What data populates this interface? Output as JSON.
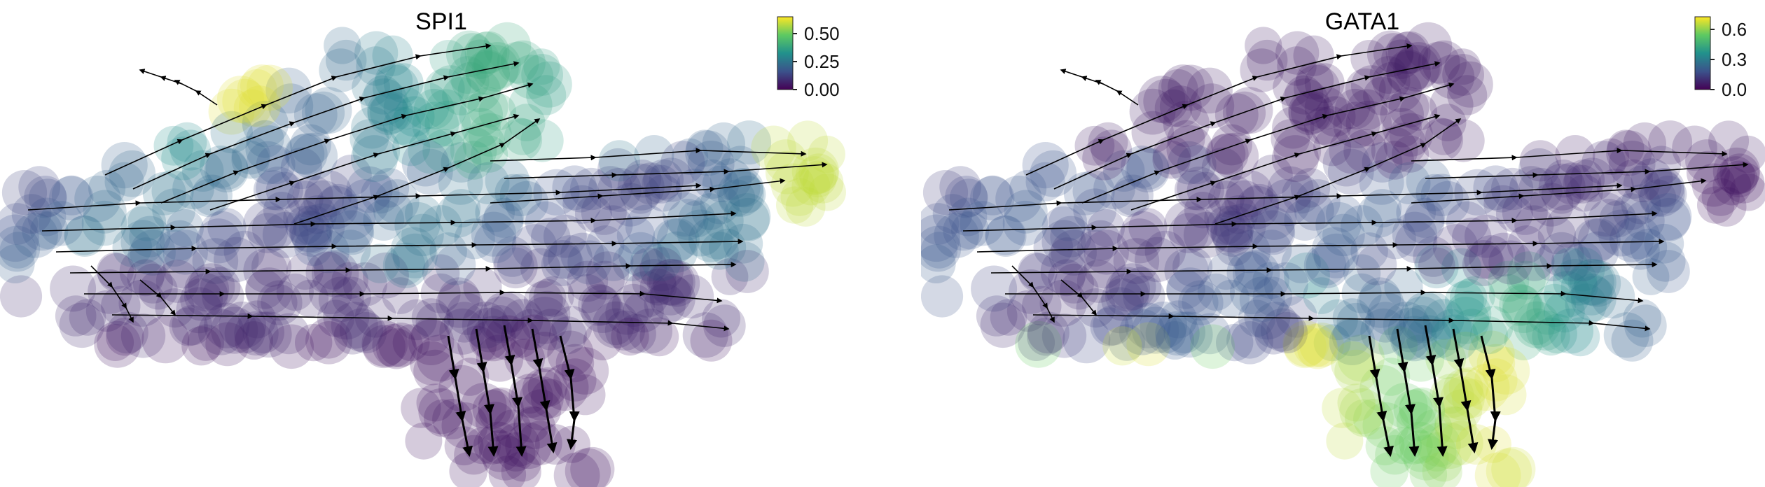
{
  "figure": {
    "panels": [
      {
        "title": "SPI1",
        "colorbar": {
          "ticks": [
            "0.00",
            "0.25",
            "0.50"
          ],
          "vmin": 0.0,
          "vmax": 0.65
        }
      },
      {
        "title": "GATA1",
        "colorbar": {
          "ticks": [
            "0.0",
            "0.3",
            "0.6"
          ],
          "vmin": 0.0,
          "vmax": 0.72
        }
      }
    ]
  },
  "chart_data": [
    {
      "type": "scatter",
      "subtype": "embedding-streamplot",
      "title": "SPI1",
      "xlabel": "",
      "ylabel": "",
      "colormap": "viridis",
      "colorbar_range": [
        0.0,
        0.65
      ],
      "colorbar_ticks": [
        0.0,
        0.25,
        0.5
      ],
      "grid": false,
      "axes_visible": false,
      "regions": [
        {
          "region": "top-left branch tip",
          "value": 0.62
        },
        {
          "region": "upper lobe",
          "value": 0.35
        },
        {
          "region": "right tip",
          "value": 0.6
        },
        {
          "region": "center band",
          "value": 0.15
        },
        {
          "region": "lower stem",
          "value": 0.03
        }
      ]
    },
    {
      "type": "scatter",
      "subtype": "embedding-streamplot",
      "title": "GATA1",
      "xlabel": "",
      "ylabel": "",
      "colormap": "viridis",
      "colorbar_range": [
        0.0,
        0.72
      ],
      "colorbar_ticks": [
        0.0,
        0.3,
        0.6
      ],
      "grid": false,
      "axes_visible": false,
      "regions": [
        {
          "region": "top-left branch tip",
          "value": 0.02
        },
        {
          "region": "upper lobe",
          "value": 0.05
        },
        {
          "region": "right tip",
          "value": 0.05
        },
        {
          "region": "center band",
          "value": 0.3
        },
        {
          "region": "lower stem",
          "value": 0.65
        }
      ]
    }
  ]
}
